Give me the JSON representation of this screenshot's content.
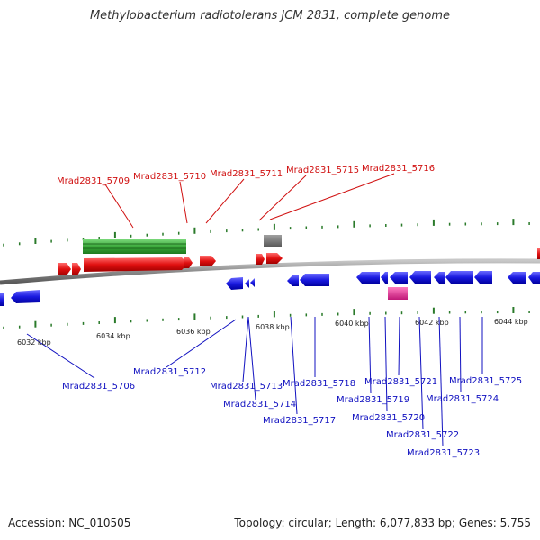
{
  "title": "Methylobacterium radiotolerans JCM 2831, complete genome",
  "footer": {
    "accession": "Accession: NC_010505",
    "topology": "Topology: circular; Length: 6,077,833 bp; Genes: 5,755"
  },
  "colors": {
    "forward_gene": "#e81010",
    "reverse_gene": "#1a1ae0",
    "forward_label": "#d01010",
    "reverse_label": "#1010c0",
    "backbone": "#8a8a8a",
    "rna_feature": "#3aa83a",
    "other_feature": "#707070",
    "pink_feature": "#e8349a",
    "ticks": "#2a7a2a"
  },
  "scale_labels": [
    "6032 kbp",
    "6034 kbp",
    "6036 kbp",
    "6038 kbp",
    "6040 kbp",
    "6042 kbp",
    "6044 kbp"
  ],
  "forward_labels": [
    "Mrad2831_5709",
    "Mrad2831_5710",
    "Mrad2831_5711",
    "Mrad2831_5715",
    "Mrad2831_5716"
  ],
  "reverse_labels": [
    "Mrad2831_5706",
    "Mrad2831_5712",
    "Mrad2831_5713",
    "Mrad2831_5714",
    "Mrad2831_5717",
    "Mrad2831_5718",
    "Mrad2831_5719",
    "Mrad2831_5720",
    "Mrad2831_5721",
    "Mrad2831_5722",
    "Mrad2831_5723",
    "Mrad2831_5724",
    "Mrad2831_5725"
  ]
}
